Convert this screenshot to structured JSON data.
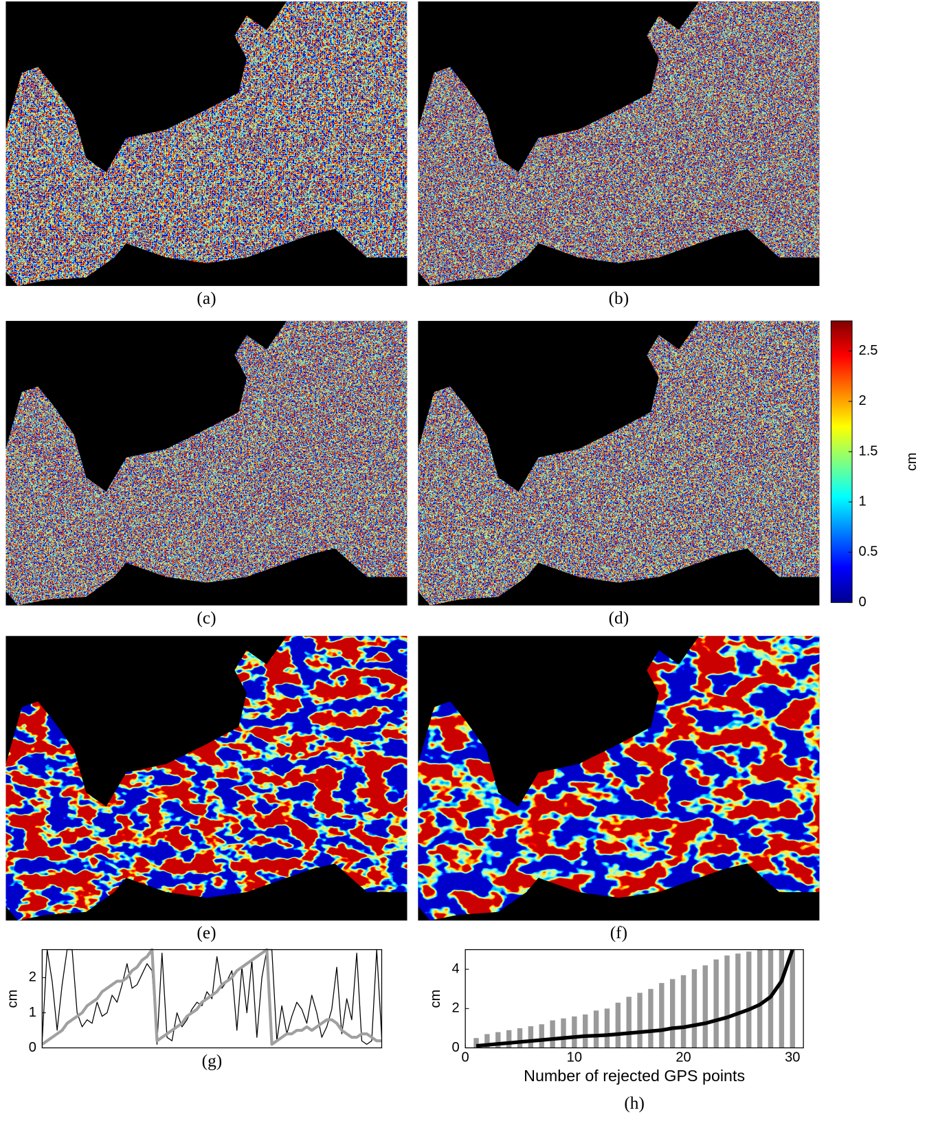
{
  "panels": [
    "(a)",
    "(b)",
    "(c)",
    "(d)",
    "(e)",
    "(f)"
  ],
  "chart_data": [
    {
      "type": "colorbar",
      "colormap": "jet",
      "ylim": [
        0,
        2.8
      ],
      "yticks": [
        0,
        0.5,
        1,
        1.5,
        2,
        2.5
      ],
      "label": "cm"
    },
    {
      "type": "line",
      "caption": "(g)",
      "ylabel": "cm",
      "ylim": [
        0,
        2.8
      ],
      "yticks": [
        0,
        1,
        2
      ],
      "series": [
        {
          "color": "#000000",
          "width": 1.2,
          "values": [
            0.2,
            2.8,
            1.9,
            0.5,
            1.8,
            2.8,
            2.8,
            1.0,
            0.6,
            0.8,
            0.7,
            1.3,
            0.9,
            1.0,
            1.5,
            1.3,
            1.8,
            2.4,
            1.7,
            1.8,
            2.1,
            2.4,
            2.2,
            0.1,
            2.7,
            0.3,
            0.2,
            1.0,
            0.6,
            0.8,
            1.1,
            1.3,
            1.2,
            1.6,
            1.4,
            2.6,
            1.7,
            1.9,
            2.2,
            0.5,
            2.3,
            1.0,
            2.5,
            0.3,
            2.0,
            2.8,
            2.8,
            0.2,
            1.2,
            0.4,
            0.9,
            1.3,
            1.1,
            0.7,
            1.5,
            1.0,
            0.3,
            0.6,
            1.1,
            2.3,
            0.4,
            1.4,
            0.8,
            2.7,
            0.2,
            0.1,
            0.2,
            2.8,
            0.3
          ]
        },
        {
          "color": "#a0a0a0",
          "width": 4,
          "values": [
            0.1,
            0.2,
            0.3,
            0.4,
            0.5,
            0.7,
            0.8,
            0.9,
            1.0,
            1.2,
            1.3,
            1.4,
            1.6,
            1.7,
            1.8,
            1.9,
            1.9,
            2.0,
            2.2,
            2.3,
            2.5,
            2.6,
            2.8,
            0.2,
            0.3,
            0.4,
            0.5,
            0.6,
            0.7,
            0.9,
            1.0,
            1.1,
            1.3,
            1.4,
            1.5,
            1.6,
            1.8,
            1.9,
            2.0,
            2.2,
            2.3,
            2.4,
            2.5,
            2.6,
            2.7,
            2.8,
            0.1,
            0.2,
            0.3,
            0.4,
            0.4,
            0.5,
            0.5,
            0.6,
            0.5,
            0.6,
            0.7,
            0.8,
            0.8,
            0.7,
            0.5,
            0.4,
            0.3,
            0.3,
            0.4,
            0.4,
            0.3,
            0.2,
            0.2
          ]
        }
      ]
    },
    {
      "type": "line",
      "caption": "(h)",
      "xlabel": "Number of rejected GPS points",
      "ylabel": "cm",
      "xlim": [
        0,
        31
      ],
      "xticks": [
        0,
        10,
        20,
        30
      ],
      "ylim": [
        0,
        5
      ],
      "yticks": [
        0,
        2,
        4
      ],
      "x": [
        1,
        2,
        3,
        4,
        5,
        6,
        7,
        8,
        9,
        10,
        11,
        12,
        13,
        14,
        15,
        16,
        17,
        18,
        19,
        20,
        21,
        22,
        23,
        24,
        25,
        26,
        27,
        28,
        29,
        30
      ],
      "series": [
        {
          "style": "bar",
          "color": "#9a9a9a",
          "values": [
            0.5,
            0.7,
            0.8,
            0.9,
            1.0,
            1.1,
            1.2,
            1.4,
            1.5,
            1.6,
            1.7,
            1.9,
            2.0,
            2.3,
            2.6,
            2.8,
            3.0,
            3.3,
            3.5,
            3.7,
            4.0,
            4.2,
            4.5,
            4.7,
            4.8,
            4.9,
            5,
            5,
            5,
            5
          ]
        },
        {
          "style": "line",
          "color": "#000000",
          "width": 5,
          "values": [
            0.1,
            0.15,
            0.2,
            0.25,
            0.3,
            0.35,
            0.4,
            0.45,
            0.5,
            0.55,
            0.6,
            0.62,
            0.65,
            0.7,
            0.75,
            0.8,
            0.85,
            0.9,
            1.0,
            1.05,
            1.15,
            1.25,
            1.4,
            1.55,
            1.75,
            1.95,
            2.2,
            2.6,
            3.4,
            5.0
          ]
        }
      ]
    }
  ]
}
